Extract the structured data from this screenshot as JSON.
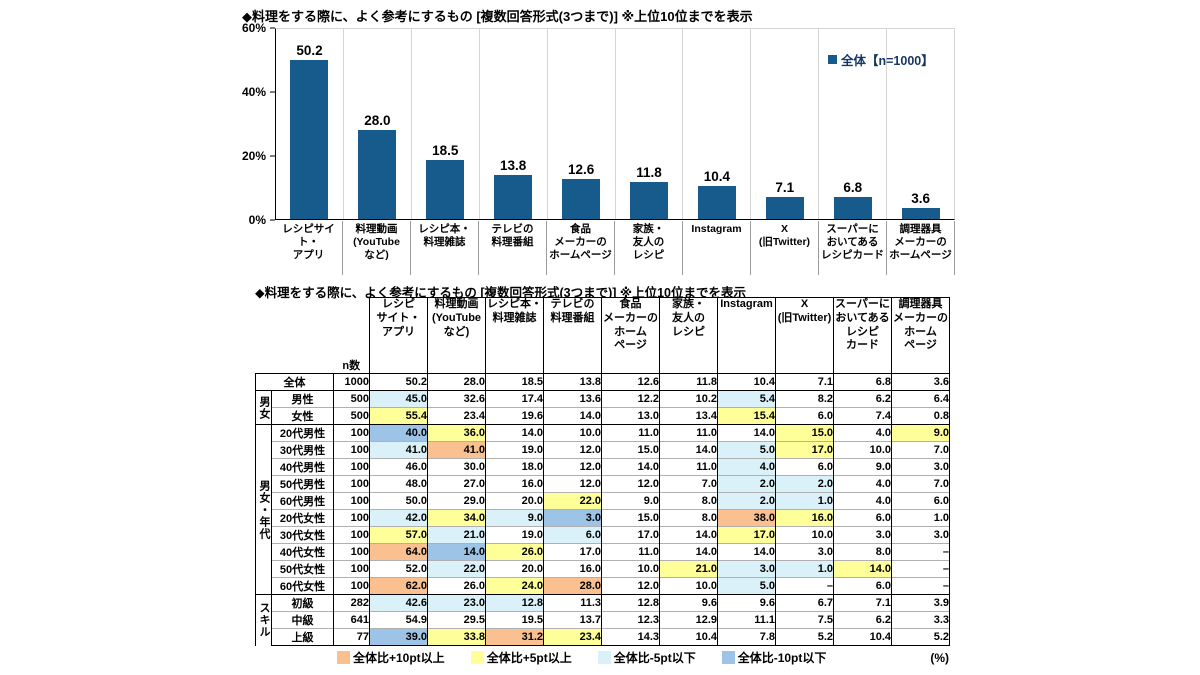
{
  "colors": {
    "o": "#FAC090",
    "y": "#FFFF99",
    "c": "#DBF1F9",
    "b": "#9DC3E6",
    "bar": "#175A8C"
  },
  "chart": {
    "title": "◆料理をする際に、よく参考にするもの [複数回答形式(3つまで)] ※上位10位までを表示",
    "y_ticks": [
      "60%",
      "40%",
      "20%",
      "0%"
    ],
    "legend_label": "全体【n=1000】"
  },
  "chart_data": {
    "type": "bar",
    "title": "◆料理をする際に、よく参考にするもの [複数回答形式(3つまで)] ※上位10位までを表示",
    "series_name": "全体【n=1000】",
    "categories": [
      "レシピサイト・アプリ",
      "料理動画(YouTubeなど)",
      "レシピ本・料理雑誌",
      "テレビの料理番組",
      "食品メーカーのホームページ",
      "家族・友人のレシピ",
      "Instagram",
      "X(旧Twitter)",
      "スーパーにおいてあるレシピカード",
      "調理器具メーカーのホームページ"
    ],
    "tick_label_lines": [
      "レシピサイト・\nアプリ",
      "料理動画\n(YouTube\nなど)",
      "レシピ本・\n料理雑誌",
      "テレビの\n料理番組",
      "食品\nメーカーの\nホームページ",
      "家族・\n友人の\nレシピ",
      "Instagram",
      "X\n(旧Twitter)",
      "スーパーに\nおいてある\nレシピカード",
      "調理器具\nメーカーの\nホームページ"
    ],
    "values": [
      50.2,
      28.0,
      18.5,
      13.8,
      12.6,
      11.8,
      10.4,
      7.1,
      6.8,
      3.6
    ],
    "ylabel": "%",
    "ylim": [
      0,
      60
    ],
    "yticks": [
      0,
      20,
      40,
      60
    ],
    "grid": false,
    "legend_position": "top-right",
    "bar_color": "#175A8C"
  },
  "table": {
    "title": "◆料理をする際に、よく参考にするもの [複数回答形式(3つまで)] ※上位10位までを表示",
    "n_header": "n数",
    "col_headers": [
      "レシピ\nサイト・\nアプリ",
      "料理動画\n(YouTube\nなど)",
      "レシピ本・\n料理雑誌",
      "テレビの\n料理番組",
      "食品\nメーカーの\nホーム\nページ",
      "家族・\n友人の\nレシピ",
      "Instagram",
      "X\n(旧Twitter)",
      "スーパーに\nおいてある\nレシピ\nカード",
      "調理器具\nメーカーの\nホーム\nページ"
    ],
    "rows": [
      {
        "span2": true,
        "label": "全体",
        "n": "1000",
        "values": [
          "50.2",
          "28.0",
          "18.5",
          "13.8",
          "12.6",
          "11.8",
          "10.4",
          "7.1",
          "6.8",
          "3.6"
        ],
        "hl": [
          "",
          "",
          "",
          "",
          "",
          "",
          "",
          "",
          "",
          ""
        ]
      },
      {
        "group": {
          "name": "男女",
          "span": 2
        },
        "label": "男性",
        "n": "500",
        "values": [
          "45.0",
          "32.6",
          "17.4",
          "13.6",
          "12.2",
          "10.2",
          "5.4",
          "8.2",
          "6.2",
          "6.4"
        ],
        "hl": [
          "c",
          "",
          "",
          "",
          "",
          "",
          "c",
          "",
          "",
          ""
        ]
      },
      {
        "label": "女性",
        "n": "500",
        "values": [
          "55.4",
          "23.4",
          "19.6",
          "14.0",
          "13.0",
          "13.4",
          "15.4",
          "6.0",
          "7.4",
          "0.8"
        ],
        "hl": [
          "y",
          "",
          "",
          "",
          "",
          "",
          "y",
          "",
          "",
          ""
        ]
      },
      {
        "group": {
          "name": "男女・年代",
          "span": 10
        },
        "label": "20代男性",
        "n": "100",
        "values": [
          "40.0",
          "36.0",
          "14.0",
          "10.0",
          "11.0",
          "11.0",
          "14.0",
          "15.0",
          "4.0",
          "9.0"
        ],
        "hl": [
          "b",
          "y",
          "",
          "",
          "",
          "",
          "",
          "y",
          "",
          "y"
        ]
      },
      {
        "label": "30代男性",
        "n": "100",
        "values": [
          "41.0",
          "41.0",
          "19.0",
          "12.0",
          "15.0",
          "14.0",
          "5.0",
          "17.0",
          "10.0",
          "7.0"
        ],
        "hl": [
          "c",
          "o",
          "",
          "",
          "",
          "",
          "c",
          "y",
          "",
          ""
        ]
      },
      {
        "label": "40代男性",
        "n": "100",
        "values": [
          "46.0",
          "30.0",
          "18.0",
          "12.0",
          "14.0",
          "11.0",
          "4.0",
          "6.0",
          "9.0",
          "3.0"
        ],
        "hl": [
          "",
          "",
          "",
          "",
          "",
          "",
          "c",
          "",
          "",
          ""
        ]
      },
      {
        "label": "50代男性",
        "n": "100",
        "values": [
          "48.0",
          "27.0",
          "16.0",
          "12.0",
          "12.0",
          "7.0",
          "2.0",
          "2.0",
          "4.0",
          "7.0"
        ],
        "hl": [
          "",
          "",
          "",
          "",
          "",
          "",
          "c",
          "c",
          "",
          ""
        ]
      },
      {
        "label": "60代男性",
        "n": "100",
        "values": [
          "50.0",
          "29.0",
          "20.0",
          "22.0",
          "9.0",
          "8.0",
          "2.0",
          "1.0",
          "4.0",
          "6.0"
        ],
        "hl": [
          "",
          "",
          "",
          "y",
          "",
          "",
          "c",
          "c",
          "",
          ""
        ]
      },
      {
        "label": "20代女性",
        "n": "100",
        "values": [
          "42.0",
          "34.0",
          "9.0",
          "3.0",
          "15.0",
          "8.0",
          "38.0",
          "16.0",
          "6.0",
          "1.0"
        ],
        "hl": [
          "c",
          "y",
          "c",
          "b",
          "",
          "",
          "o",
          "y",
          "",
          ""
        ]
      },
      {
        "label": "30代女性",
        "n": "100",
        "values": [
          "57.0",
          "21.0",
          "19.0",
          "6.0",
          "17.0",
          "14.0",
          "17.0",
          "10.0",
          "3.0",
          "3.0"
        ],
        "hl": [
          "y",
          "c",
          "",
          "c",
          "",
          "",
          "y",
          "",
          "",
          ""
        ]
      },
      {
        "label": "40代女性",
        "n": "100",
        "values": [
          "64.0",
          "14.0",
          "26.0",
          "17.0",
          "11.0",
          "14.0",
          "14.0",
          "3.0",
          "8.0",
          "–"
        ],
        "hl": [
          "o",
          "b",
          "y",
          "",
          "",
          "",
          "",
          "",
          "",
          ""
        ]
      },
      {
        "label": "50代女性",
        "n": "100",
        "values": [
          "52.0",
          "22.0",
          "20.0",
          "16.0",
          "10.0",
          "21.0",
          "3.0",
          "1.0",
          "14.0",
          "–"
        ],
        "hl": [
          "",
          "c",
          "",
          "",
          "",
          "y",
          "c",
          "c",
          "y",
          ""
        ]
      },
      {
        "label": "60代女性",
        "n": "100",
        "values": [
          "62.0",
          "26.0",
          "24.0",
          "28.0",
          "12.0",
          "10.0",
          "5.0",
          "–",
          "6.0",
          "–"
        ],
        "hl": [
          "o",
          "",
          "y",
          "o",
          "",
          "",
          "c",
          "",
          "",
          ""
        ]
      },
      {
        "group": {
          "name": "スキル",
          "span": 3
        },
        "label": "初級",
        "n": "282",
        "values": [
          "42.6",
          "23.0",
          "12.8",
          "11.3",
          "12.8",
          "9.6",
          "9.6",
          "6.7",
          "7.1",
          "3.9"
        ],
        "hl": [
          "c",
          "c",
          "c",
          "",
          "",
          "",
          "",
          "",
          "",
          ""
        ]
      },
      {
        "label": "中級",
        "n": "641",
        "values": [
          "54.9",
          "29.5",
          "19.5",
          "13.7",
          "12.3",
          "12.9",
          "11.1",
          "7.5",
          "6.2",
          "3.3"
        ],
        "hl": [
          "",
          "",
          "",
          "",
          "",
          "",
          "",
          "",
          "",
          ""
        ]
      },
      {
        "label": "上級",
        "n": "77",
        "values": [
          "39.0",
          "33.8",
          "31.2",
          "23.4",
          "14.3",
          "10.4",
          "7.8",
          "5.2",
          "10.4",
          "5.2"
        ],
        "hl": [
          "b",
          "y",
          "o",
          "y",
          "",
          "",
          "",
          "",
          "",
          ""
        ]
      }
    ],
    "legend": [
      {
        "code": "o",
        "label": "全体比+10pt以上"
      },
      {
        "code": "y",
        "label": "全体比+5pt以上"
      },
      {
        "code": "c",
        "label": "全体比-5pt以下"
      },
      {
        "code": "b",
        "label": "全体比-10pt以下"
      }
    ],
    "unit": "(%)"
  }
}
